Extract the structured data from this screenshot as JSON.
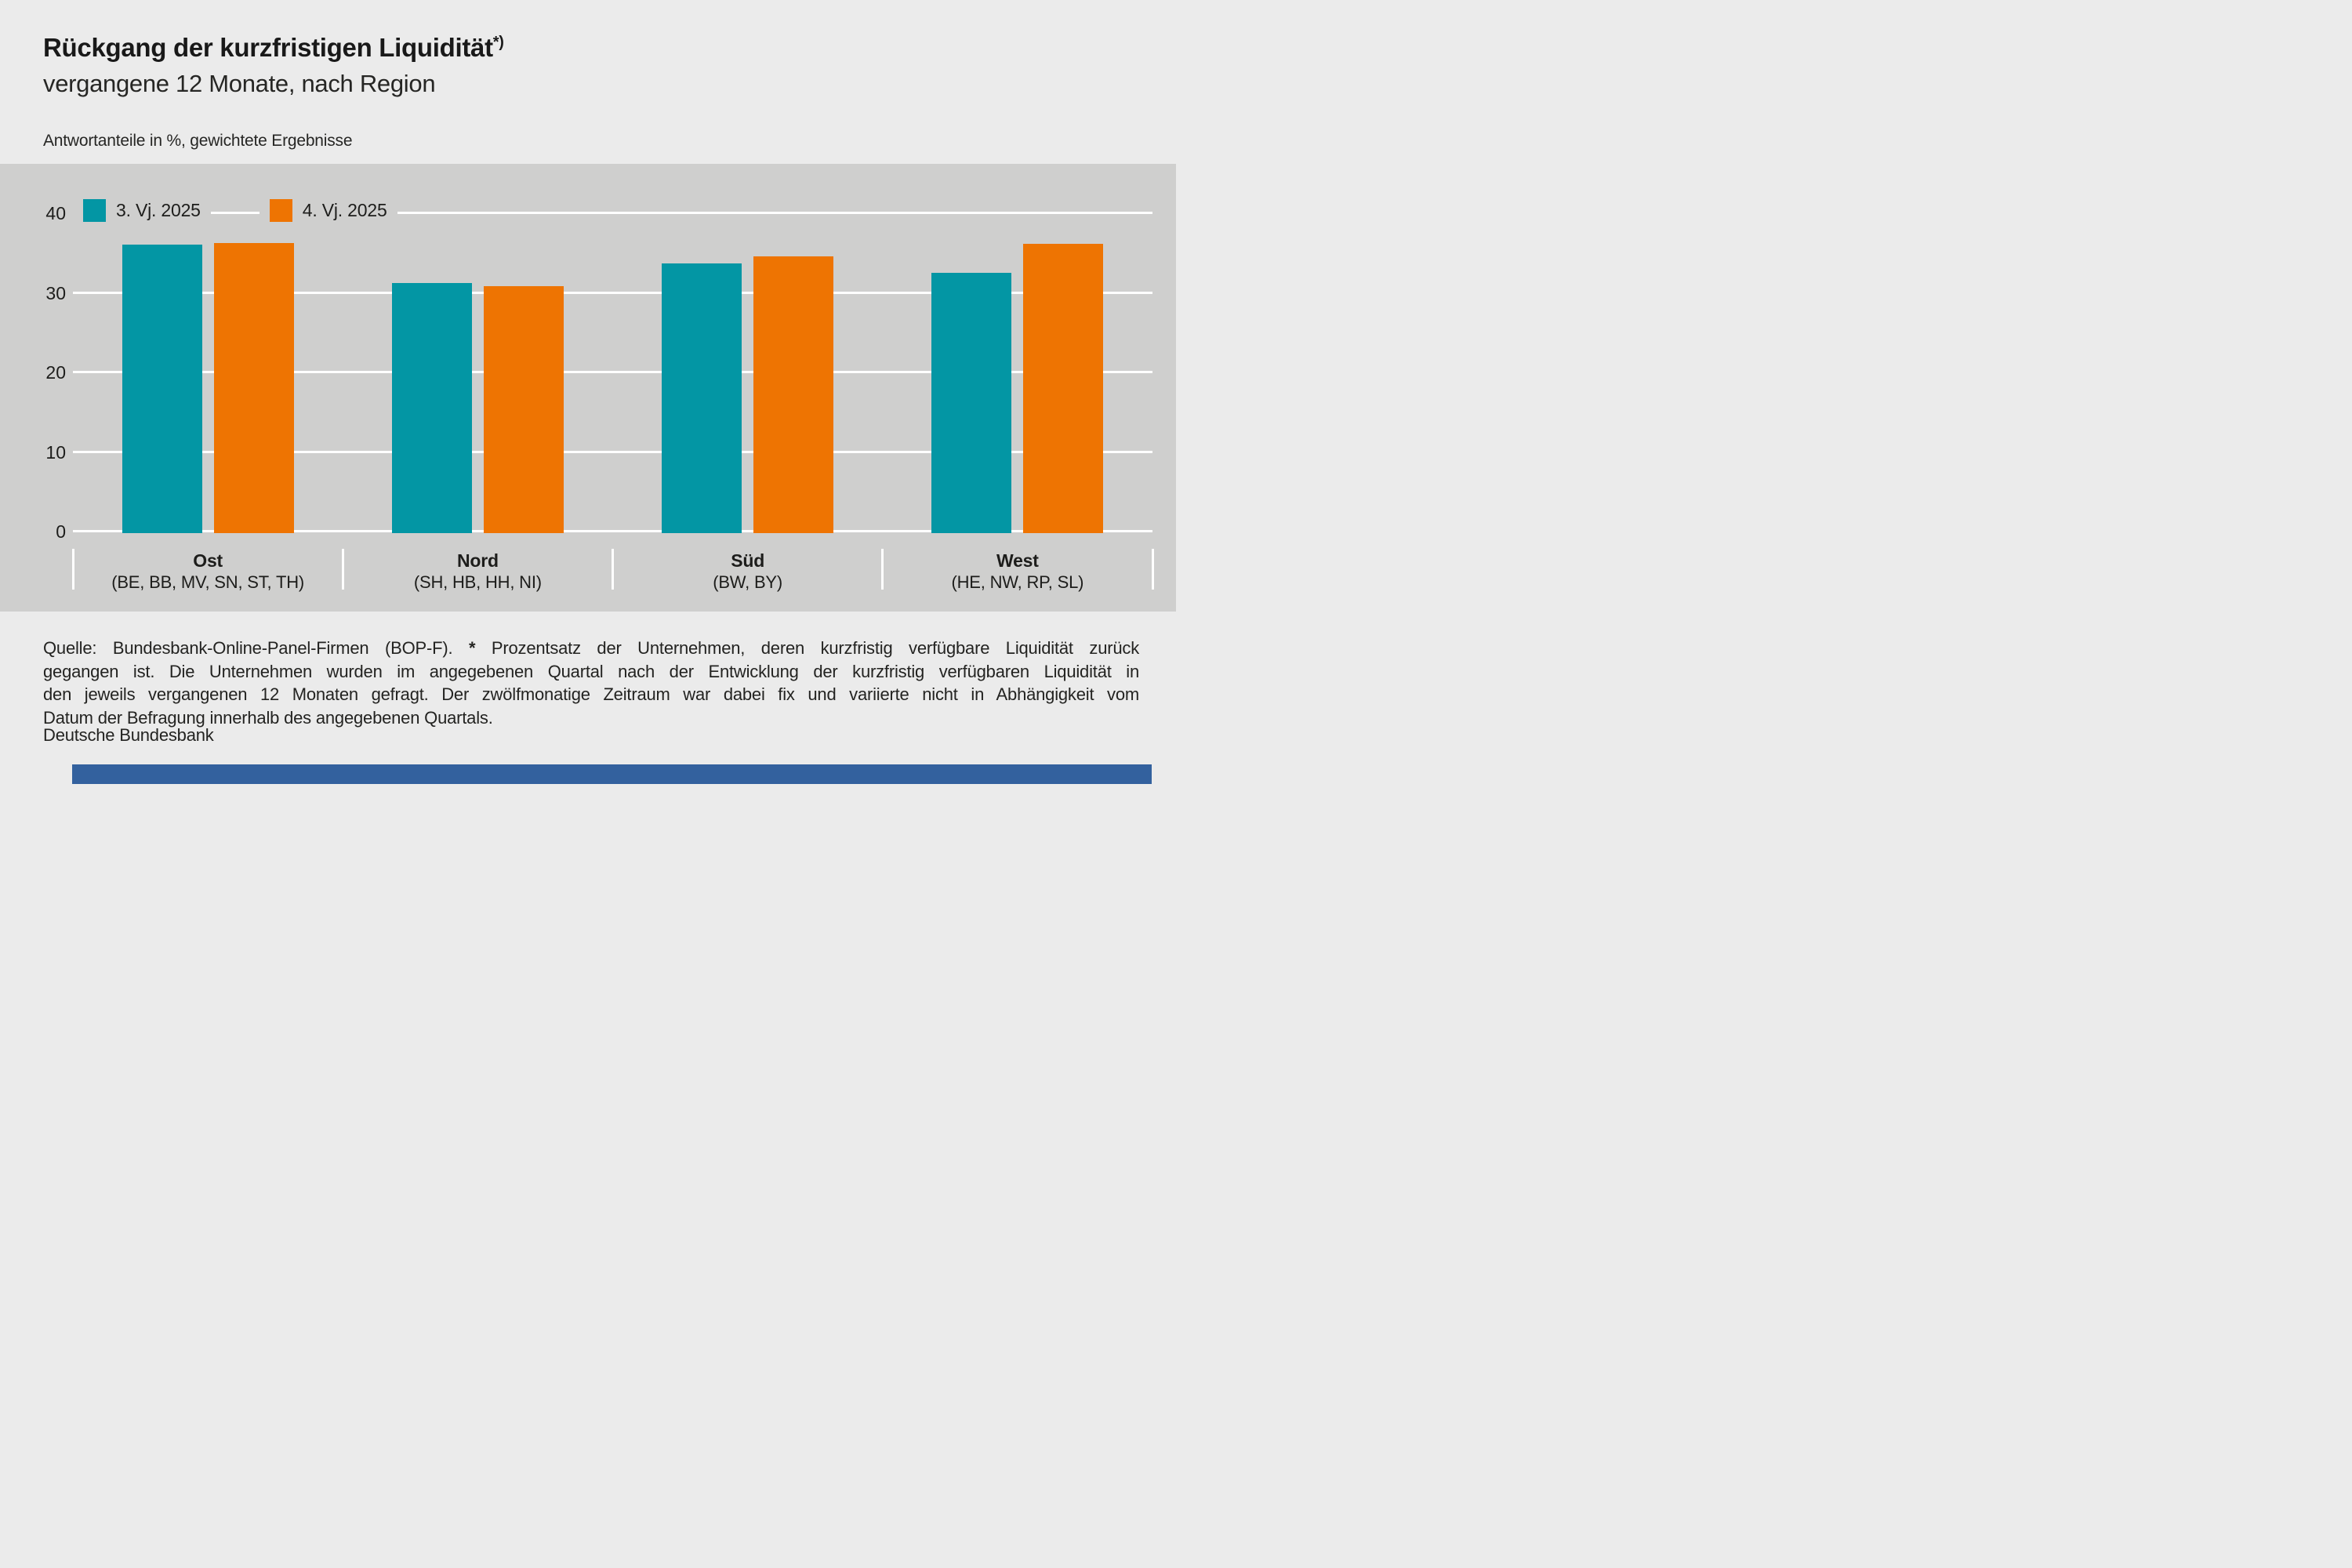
{
  "header": {
    "title": "Rückgang der kurzfristigen Liquidität",
    "title_superscript": "*)",
    "subtitle": "vergangene 12 Monate, nach Region",
    "units_note": "Antwortanteile in %, gewichtete Ergebnisse"
  },
  "chart_data": {
    "type": "bar",
    "title": "Rückgang der kurzfristigen Liquidität*)",
    "subtitle": "vergangene 12 Monate, nach Region",
    "ylabel": "Antwortanteile in %, gewichtete Ergebnisse",
    "xlabel": "",
    "ylim": [
      0,
      40
    ],
    "yticks": [
      0,
      10,
      20,
      30,
      40
    ],
    "grid": true,
    "gridline_color": "#ffffff",
    "legend_position": "top-left-inside",
    "categories": [
      "Ost",
      "Nord",
      "Süd",
      "West"
    ],
    "category_sublabels": [
      "(BE, BB, MV, SN, ST, TH)",
      "(SH, HB, HH, NI)",
      "(BW, BY)",
      "(HE, NW, RP, SL)"
    ],
    "series": [
      {
        "name": "3. Vj. 2025",
        "color": "#0396a4",
        "values": [
          36.0,
          31.1,
          33.6,
          32.4
        ]
      },
      {
        "name": "4. Vj. 2025",
        "color": "#ee7402",
        "values": [
          36.2,
          30.7,
          34.5,
          36.1
        ]
      }
    ]
  },
  "footnote": {
    "line1_pre": "Quelle: Bundesbank-Online-Panel-Firmen (BOP-F). ",
    "star": "*",
    "line1_post": " Prozentsatz der Unternehmen, deren kurzfristig verfügbare Liquidität zurück",
    "line2": "gegangen ist. Die Unternehmen wurden im angegebenen Quartal nach der Entwicklung der kurzfristig verfügbaren Liquidität in",
    "line3": "den jeweils vergangenen 12 Monaten gefragt. Der zwölfmonatige Zeitraum war dabei fix und variierte nicht in Abhängigkeit vom",
    "line4": "Datum der Befragung innerhalb des angegebenen Quartals.",
    "source": "Deutsche Bundesbank"
  },
  "colors": {
    "page_background": "#ebebeb",
    "plot_background": "#cfcfce",
    "gridline": "#ffffff",
    "text": "#1d1d1b",
    "series_teal": "#0396a4",
    "series_orange": "#ee7402",
    "bottom_bar_blue": "#33619e"
  }
}
